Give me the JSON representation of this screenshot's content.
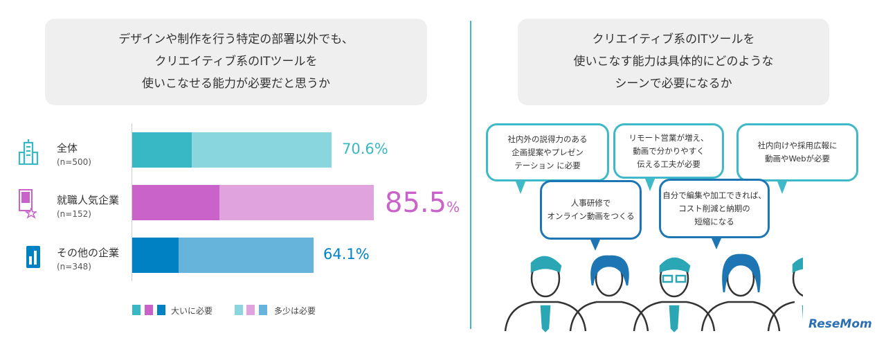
{
  "left_question": {
    "lines": [
      "デザインや制作を行う特定の部署以外でも、",
      "クリエイティブ系のITツールを",
      "使いこなせる能力が必要だと思うか"
    ]
  },
  "right_question": {
    "lines": [
      "クリエイティブ系のITツールを",
      "使いこなす能力は具体的にどのような",
      "シーンで必要になるか"
    ]
  },
  "chart_data": {
    "type": "bar",
    "orientation": "horizontal",
    "stacked": true,
    "categories": [
      "全体",
      "就職人気企業",
      "その他の企業"
    ],
    "sample_sizes": [
      "(n=500)",
      "(n=152)",
      "(n=348)"
    ],
    "series": [
      {
        "name": "大いに必要",
        "values": [
          21.0,
          31.0,
          16.4
        ]
      },
      {
        "name": "多少は必要",
        "values": [
          49.6,
          54.5,
          47.7
        ]
      }
    ],
    "totals": [
      70.6,
      85.5,
      64.1
    ],
    "total_labels": [
      "70.6%",
      "85.5",
      "64.1%"
    ],
    "percent_sign": "%",
    "xlim": [
      0,
      100
    ],
    "colors": {
      "dark": [
        "#38b8c5",
        "#c963c9",
        "#0081c4"
      ],
      "light": [
        "#8ad6de",
        "#e0a3de",
        "#66b3dc"
      ]
    }
  },
  "bubbles": [
    {
      "lines": [
        "社内外の説得力のある",
        "企画提案やプレゼン",
        "テーション に必要"
      ]
    },
    {
      "lines": [
        "リモート営業が増え、",
        "動画で分かりやすく",
        "伝える工夫が必要"
      ]
    },
    {
      "lines": [
        "社内向けや採用広報に",
        "動画やWebが必要"
      ]
    },
    {
      "lines": [
        "人事研修で",
        "オンライン動画をつくる"
      ]
    },
    {
      "lines": [
        "自分で編集や加工できれば、",
        "コスト削減と納期の",
        "短縮になる"
      ]
    }
  ],
  "logo": "ReseMom"
}
